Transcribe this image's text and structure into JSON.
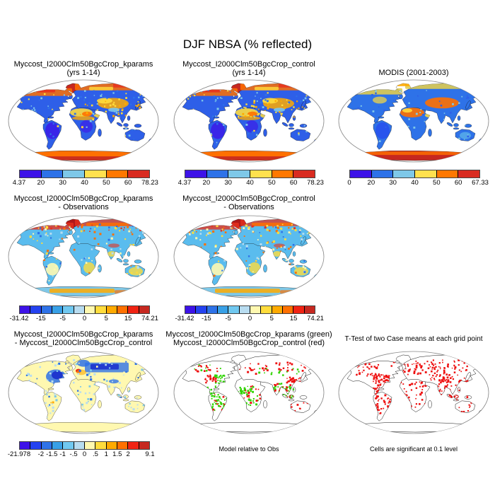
{
  "figure_title": "DJF NBSA (% reflected)",
  "colorbar_palettes": {
    "albedo": [
      "#3d12e8",
      "#2e72e8",
      "#7ec8e8",
      "#ffe14e",
      "#ff7800",
      "#d92b20"
    ],
    "diff": [
      "#3d12e8",
      "#2442f0",
      "#2e72e8",
      "#38a0e6",
      "#70c8f0",
      "#b8dcf0",
      "#fff8b0",
      "#ffdc3c",
      "#ffaa00",
      "#ff7000",
      "#f02313",
      "#c62820"
    ]
  },
  "map_palette": {
    "ocean": "#ffffff",
    "coast": "#111111",
    "ellipse": "#888888",
    "violet": "#3d12e8",
    "blue": "#2e5fe8",
    "blue2": "#2e72e8",
    "deepblue": "#1a2ecc",
    "cyan": "#5abcee",
    "lightcyan": "#7ec8e8",
    "paleblue": "#b8dcf0",
    "cream": "#fff8b0",
    "yellow": "#ffdc3c",
    "amber": "#ffaa00",
    "orange": "#ff7000",
    "red": "#e8321e",
    "darkred": "#c62820",
    "brick": "#b01818",
    "khaki": "#e0cc50",
    "green": "#2fd400",
    "dotred": "#ee1111"
  },
  "panels": [
    {
      "id": "kparams",
      "style": "albedo_model",
      "title_lines": [
        "Myccost_I2000Clm50BgcCrop_kparams",
        "(yrs 1-14)"
      ],
      "colorbar": {
        "palette": "albedo",
        "ticks": [
          {
            "label": "4.37",
            "pos": 0
          },
          {
            "label": "20",
            "pos": 0.1667
          },
          {
            "label": "30",
            "pos": 0.3333
          },
          {
            "label": "40",
            "pos": 0.5
          },
          {
            "label": "50",
            "pos": 0.6667
          },
          {
            "label": "60",
            "pos": 0.8333
          },
          {
            "label": "78.23",
            "pos": 1
          }
        ]
      }
    },
    {
      "id": "control",
      "style": "albedo_model",
      "title_lines": [
        "Myccost_I2000Clm50BgcCrop_control",
        "(yrs 1-14)"
      ],
      "colorbar": {
        "palette": "albedo",
        "ticks": [
          {
            "label": "4.37",
            "pos": 0
          },
          {
            "label": "20",
            "pos": 0.1667
          },
          {
            "label": "30",
            "pos": 0.3333
          },
          {
            "label": "40",
            "pos": 0.5
          },
          {
            "label": "50",
            "pos": 0.6667
          },
          {
            "label": "60",
            "pos": 0.8333
          },
          {
            "label": "78.23",
            "pos": 1
          }
        ]
      }
    },
    {
      "id": "modis",
      "style": "albedo_modis",
      "title_lines": [
        "MODIS (2001-2003)"
      ],
      "colorbar": {
        "palette": "albedo",
        "ticks": [
          {
            "label": "0",
            "pos": 0
          },
          {
            "label": "20",
            "pos": 0.1667
          },
          {
            "label": "30",
            "pos": 0.3333
          },
          {
            "label": "40",
            "pos": 0.5
          },
          {
            "label": "50",
            "pos": 0.6667
          },
          {
            "label": "60",
            "pos": 0.8333
          },
          {
            "label": "67.33",
            "pos": 1
          }
        ]
      }
    },
    {
      "id": "kparams-minus-obs",
      "style": "diff_obs",
      "title_lines": [
        "Myccost_I2000Clm50BgcCrop_kparams",
        "- Observations"
      ],
      "colorbar": {
        "palette": "diff",
        "ticks": [
          {
            "label": "-31.42",
            "pos": 0
          },
          {
            "label": "-15",
            "pos": 0.1667
          },
          {
            "label": "-5",
            "pos": 0.3333
          },
          {
            "label": "0",
            "pos": 0.5
          },
          {
            "label": "5",
            "pos": 0.6667
          },
          {
            "label": "15",
            "pos": 0.8333
          },
          {
            "label": "74.21",
            "pos": 1
          }
        ]
      }
    },
    {
      "id": "control-minus-obs",
      "style": "diff_obs",
      "title_lines": [
        "Myccost_I2000Clm50BgcCrop_control",
        "- Observations"
      ],
      "colorbar": {
        "palette": "diff",
        "ticks": [
          {
            "label": "-31.42",
            "pos": 0
          },
          {
            "label": "-15",
            "pos": 0.1667
          },
          {
            "label": "-5",
            "pos": 0.3333
          },
          {
            "label": "0",
            "pos": 0.5
          },
          {
            "label": "5",
            "pos": 0.6667
          },
          {
            "label": "15",
            "pos": 0.8333
          },
          {
            "label": "74.21",
            "pos": 1
          }
        ]
      }
    },
    {
      "id": "kparams-minus-control",
      "style": "diff_model",
      "title_lines": [
        "Myccost_I2000Clm50BgcCrop_kparams",
        "- Myccost_I2000Clm50BgcCrop_control"
      ],
      "colorbar": {
        "palette": "diff",
        "ticks": [
          {
            "label": "-21.978",
            "pos": 0
          },
          {
            "label": "-2",
            "pos": 0.1667
          },
          {
            "label": "-1.5",
            "pos": 0.25
          },
          {
            "label": "-1",
            "pos": 0.3333
          },
          {
            "label": "-.5",
            "pos": 0.4167
          },
          {
            "label": "0",
            "pos": 0.5
          },
          {
            "label": ".5",
            "pos": 0.5833
          },
          {
            "label": "1",
            "pos": 0.6667
          },
          {
            "label": "1.5",
            "pos": 0.75
          },
          {
            "label": "2",
            "pos": 0.8333
          },
          {
            "label": "9.1",
            "pos": 1
          }
        ]
      }
    },
    {
      "id": "model-vs-obs-dots",
      "style": "dots_gr",
      "title_lines": [
        "Myccost_I2000Clm50BgcCrop_kparams (green)",
        "Myccost_I2000Clm50BgcCrop_control (red)"
      ],
      "caption": "Model relative to Obs"
    },
    {
      "id": "t-test",
      "style": "dots_r",
      "title_lines": [
        "T-Test of two Case means at each grid point"
      ],
      "caption": "Cells are significant at 0.1 level"
    }
  ],
  "chart_data": [
    {
      "type": "heatmap",
      "subtype": "global-map",
      "projection": "robinson",
      "title": "Myccost_I2000Clm50BgcCrop_kparams (yrs 1-14)",
      "variable": "DJF NBSA (% reflected)",
      "colorbar_ticks": [
        4.37,
        20,
        30,
        40,
        50,
        60,
        78.23
      ],
      "range": [
        4.37,
        78.23
      ],
      "n_color_segments": 6
    },
    {
      "type": "heatmap",
      "subtype": "global-map",
      "projection": "robinson",
      "title": "Myccost_I2000Clm50BgcCrop_control (yrs 1-14)",
      "variable": "DJF NBSA (% reflected)",
      "colorbar_ticks": [
        4.37,
        20,
        30,
        40,
        50,
        60,
        78.23
      ],
      "range": [
        4.37,
        78.23
      ],
      "n_color_segments": 6
    },
    {
      "type": "heatmap",
      "subtype": "global-map",
      "projection": "robinson",
      "title": "MODIS (2001-2003)",
      "variable": "DJF NBSA (% reflected)",
      "colorbar_ticks": [
        0,
        20,
        30,
        40,
        50,
        60,
        67.33
      ],
      "range": [
        0,
        67.33
      ],
      "n_color_segments": 6
    },
    {
      "type": "heatmap",
      "subtype": "global-map-difference",
      "projection": "robinson",
      "title": "Myccost_I2000Clm50BgcCrop_kparams - Observations",
      "colorbar_ticks": [
        -31.42,
        -15,
        -5,
        0,
        5,
        15,
        74.21
      ],
      "range": [
        -31.42,
        74.21
      ],
      "n_color_segments": 12
    },
    {
      "type": "heatmap",
      "subtype": "global-map-difference",
      "projection": "robinson",
      "title": "Myccost_I2000Clm50BgcCrop_control - Observations",
      "colorbar_ticks": [
        -31.42,
        -15,
        -5,
        0,
        5,
        15,
        74.21
      ],
      "range": [
        -31.42,
        74.21
      ],
      "n_color_segments": 12
    },
    {
      "type": "heatmap",
      "subtype": "global-map-difference",
      "projection": "robinson",
      "title": "Myccost_I2000Clm50BgcCrop_kparams - Myccost_I2000Clm50BgcCrop_control",
      "colorbar_ticks": [
        -21.978,
        -2,
        -1.5,
        -1,
        -0.5,
        0,
        0.5,
        1,
        1.5,
        2,
        9.1
      ],
      "range": [
        -21.978,
        9.1
      ],
      "n_color_segments": 12
    },
    {
      "type": "scatter",
      "subtype": "global-map-categorical",
      "projection": "robinson",
      "title": "Myccost_I2000Clm50BgcCrop_kparams (green) Myccost_I2000Clm50BgcCrop_control (red)",
      "legend": [
        {
          "label": "Myccost_I2000Clm50BgcCrop_kparams",
          "color": "green"
        },
        {
          "label": "Myccost_I2000Clm50BgcCrop_control",
          "color": "red"
        }
      ],
      "caption": "Model relative to Obs"
    },
    {
      "type": "scatter",
      "subtype": "global-map-significance",
      "projection": "robinson",
      "title": "T-Test of two Case means at each grid point",
      "significant_color": "red",
      "caption": "Cells are significant at 0.1 level"
    }
  ]
}
